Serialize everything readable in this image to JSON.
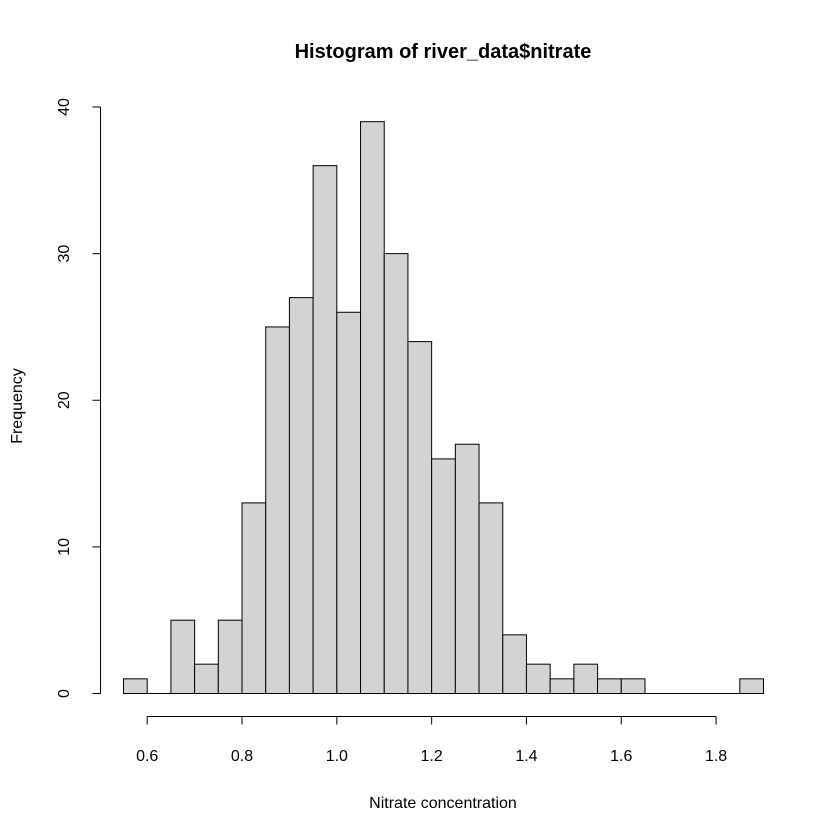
{
  "chart_data": {
    "type": "bar",
    "title": "Histogram of river_data$nitrate",
    "xlabel": "Nitrate concentration",
    "ylabel": "Frequency",
    "xlim": [
      0.55,
      1.9
    ],
    "ylim": [
      0,
      40
    ],
    "x_ticks": [
      0.6,
      0.8,
      1.0,
      1.2,
      1.4,
      1.6,
      1.8
    ],
    "x_tick_labels": [
      "0.6",
      "0.8",
      "1.0",
      "1.2",
      "1.4",
      "1.6",
      "1.8"
    ],
    "y_ticks": [
      0,
      10,
      20,
      30,
      40
    ],
    "y_tick_labels": [
      "0",
      "10",
      "20",
      "30",
      "40"
    ],
    "bin_width": 0.05,
    "bins": [
      {
        "start": 0.55,
        "end": 0.6,
        "count": 1
      },
      {
        "start": 0.6,
        "end": 0.65,
        "count": 0
      },
      {
        "start": 0.65,
        "end": 0.7,
        "count": 5
      },
      {
        "start": 0.7,
        "end": 0.75,
        "count": 2
      },
      {
        "start": 0.75,
        "end": 0.8,
        "count": 5
      },
      {
        "start": 0.8,
        "end": 0.85,
        "count": 13
      },
      {
        "start": 0.85,
        "end": 0.9,
        "count": 25
      },
      {
        "start": 0.9,
        "end": 0.95,
        "count": 27
      },
      {
        "start": 0.95,
        "end": 1.0,
        "count": 36
      },
      {
        "start": 1.0,
        "end": 1.05,
        "count": 26
      },
      {
        "start": 1.05,
        "end": 1.1,
        "count": 39
      },
      {
        "start": 1.1,
        "end": 1.15,
        "count": 30
      },
      {
        "start": 1.15,
        "end": 1.2,
        "count": 24
      },
      {
        "start": 1.2,
        "end": 1.25,
        "count": 16
      },
      {
        "start": 1.25,
        "end": 1.3,
        "count": 17
      },
      {
        "start": 1.3,
        "end": 1.35,
        "count": 13
      },
      {
        "start": 1.35,
        "end": 1.4,
        "count": 4
      },
      {
        "start": 1.4,
        "end": 1.45,
        "count": 2
      },
      {
        "start": 1.45,
        "end": 1.5,
        "count": 1
      },
      {
        "start": 1.5,
        "end": 1.55,
        "count": 2
      },
      {
        "start": 1.55,
        "end": 1.6,
        "count": 1
      },
      {
        "start": 1.6,
        "end": 1.65,
        "count": 1
      },
      {
        "start": 1.65,
        "end": 1.7,
        "count": 0
      },
      {
        "start": 1.7,
        "end": 1.75,
        "count": 0
      },
      {
        "start": 1.75,
        "end": 1.8,
        "count": 0
      },
      {
        "start": 1.8,
        "end": 1.85,
        "count": 0
      },
      {
        "start": 1.85,
        "end": 1.9,
        "count": 1
      }
    ],
    "bar_fill": "#d3d3d3",
    "bar_stroke": "#000000",
    "grid": false,
    "legend": "none"
  }
}
